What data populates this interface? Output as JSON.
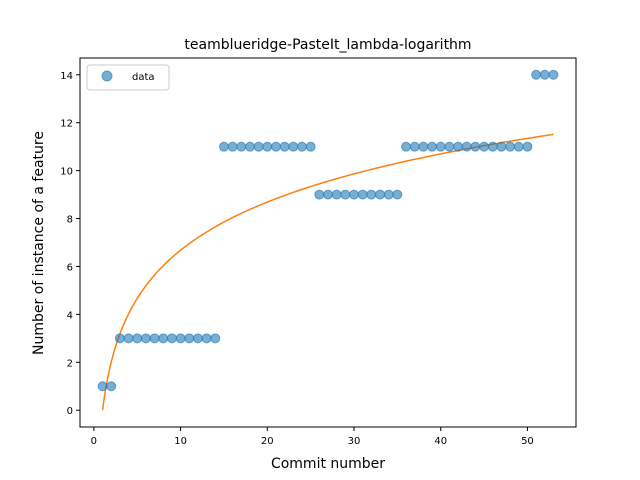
{
  "chart_data": {
    "type": "scatter",
    "title": "teamblueridge-PasteIt_lambda-logarithm",
    "xlabel": "Commit number",
    "ylabel": "Number of instance of a feature",
    "xlim": [
      -1.6,
      55.6
    ],
    "ylim": [
      -0.7,
      14.7
    ],
    "xticks": [
      0,
      10,
      20,
      30,
      40,
      50
    ],
    "yticks": [
      0,
      2,
      4,
      6,
      8,
      10,
      12,
      14
    ],
    "grid": false,
    "legend_position": "upper-left",
    "series": [
      {
        "name": "data",
        "kind": "scatter",
        "color": "#1f77b4",
        "x": [
          1,
          2,
          3,
          4,
          5,
          6,
          7,
          8,
          9,
          10,
          11,
          12,
          13,
          14,
          15,
          16,
          17,
          18,
          19,
          20,
          21,
          22,
          23,
          24,
          25,
          26,
          27,
          28,
          29,
          30,
          31,
          32,
          33,
          34,
          35,
          36,
          37,
          38,
          39,
          40,
          41,
          42,
          43,
          44,
          45,
          46,
          47,
          48,
          49,
          50,
          51,
          52,
          53
        ],
        "y": [
          1,
          1,
          3,
          3,
          3,
          3,
          3,
          3,
          3,
          3,
          3,
          3,
          3,
          3,
          11,
          11,
          11,
          11,
          11,
          11,
          11,
          11,
          11,
          11,
          11,
          9,
          9,
          9,
          9,
          9,
          9,
          9,
          9,
          9,
          9,
          11,
          11,
          11,
          11,
          11,
          11,
          11,
          11,
          11,
          11,
          11,
          11,
          11,
          11,
          11,
          14,
          14,
          14
        ]
      },
      {
        "kind": "line",
        "color": "#ff7f0e",
        "formula": "y = 2.9 * ln(x)",
        "x_range": [
          1,
          53
        ]
      }
    ]
  }
}
